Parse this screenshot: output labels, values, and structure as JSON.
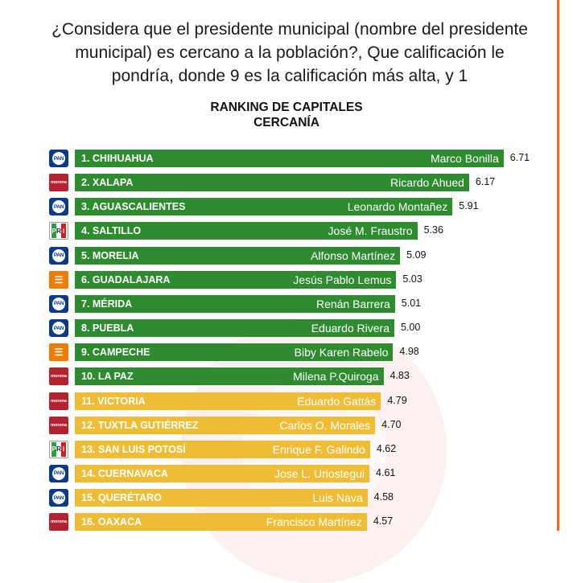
{
  "question": "¿Considera que el presidente municipal   (nombre del presidente municipal) es cercano a la población?, Que calificación le pondría, donde 9 es la calificación más alta, y  1",
  "colors": {
    "top_bar": "#2e8b2f",
    "bottom_bar": "#efbd35",
    "pan": "#0b3a8c",
    "morena": "#b5222f",
    "mc": "#f07d00"
  },
  "chart_data": {
    "type": "bar",
    "orientation": "horizontal",
    "title": "RANKING DE CAPITALES",
    "subtitle": "CERCANÍA",
    "categories": [
      "1. CHIHUAHUA",
      "2. XALAPA",
      "3. AGUASCALIENTES",
      "4. SALTILLO",
      "5. MORELIA",
      "6. GUADALAJARA",
      "7. MÉRIDA",
      "8. PUEBLA",
      "9. CAMPECHE",
      "10. LA PAZ",
      "11. VICTORIA",
      "12. TUXTLA GUTIÉRREZ",
      "13. SAN LUIS POTOSÍ",
      "14. CUERNAVACA",
      "15. QUERÉTARO",
      "16. OAXACA"
    ],
    "names": [
      "Marco Bonilla",
      "Ricardo Ahued",
      "Leonardo Montañez",
      "José M. Fraustro",
      "Alfonso Martínez",
      "Jesús Pablo Lemus",
      "Renán Barrera",
      "Eduardo Rivera",
      "Biby Karen Rabelo",
      "Milena P.Quiroga",
      "Eduardo Gattás",
      "Carlos O. Morales",
      "Enrique F. Galindo",
      "Jose L. Uriostegui",
      "Luis Nava",
      "Francisco Martínez"
    ],
    "values": [
      6.71,
      6.17,
      5.91,
      5.36,
      5.09,
      5.03,
      5.01,
      5.0,
      4.98,
      4.83,
      4.79,
      4.7,
      4.62,
      4.61,
      4.58,
      4.57
    ],
    "value_labels": [
      "6.71",
      "6.17",
      "5.91",
      "5.36",
      "5.09",
      "5.03",
      "5.01",
      "5.00",
      "4.98",
      "4.83",
      "4.79",
      "4.70",
      "4.62",
      "4.61",
      "4.58",
      "4.57"
    ],
    "parties": [
      "pan",
      "morena",
      "pan",
      "pri",
      "pan",
      "mc",
      "pan",
      "pan",
      "mc",
      "morena",
      "morena",
      "morena",
      "pri",
      "pan",
      "pan",
      "morena"
    ],
    "bar_colors": [
      "green",
      "green",
      "green",
      "green",
      "green",
      "green",
      "green",
      "green",
      "green",
      "green",
      "yellow",
      "yellow",
      "yellow",
      "yellow",
      "yellow",
      "yellow"
    ],
    "logo_text": {
      "pan": "PAN",
      "morena": "morena",
      "pri": [
        "P",
        "R",
        "I"
      ],
      "mc": "☰"
    }
  }
}
